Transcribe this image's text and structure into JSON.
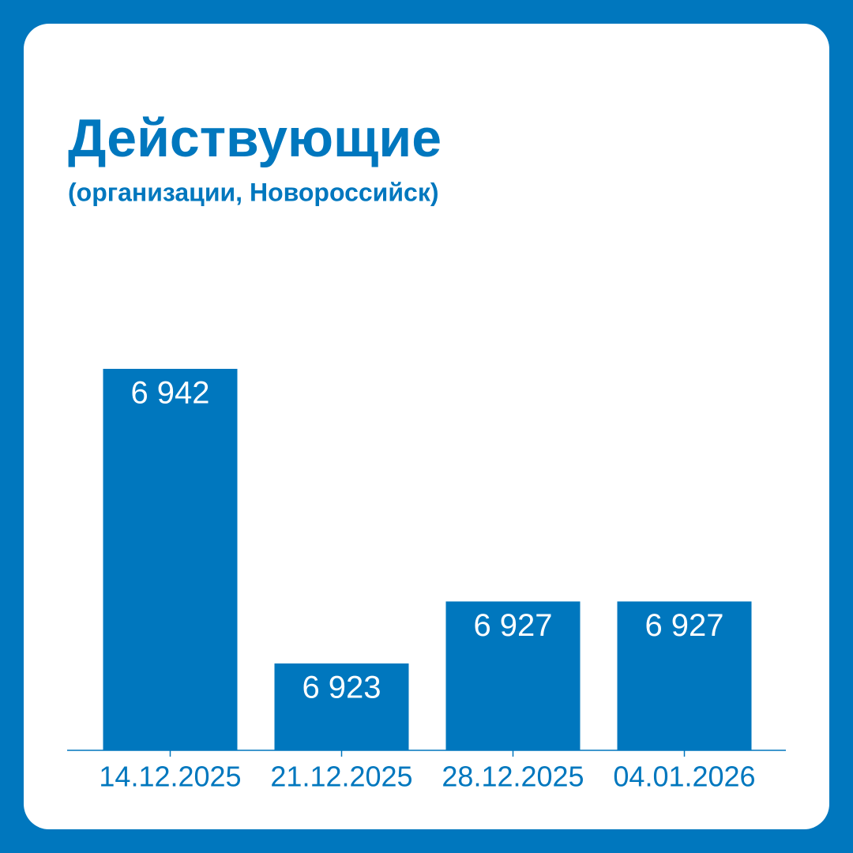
{
  "chart_data": {
    "type": "bar",
    "title": "Действующие",
    "subtitle": "(организации, Новороссийск)",
    "categories": [
      "14.12.2025",
      "21.12.2025",
      "28.12.2025",
      "04.01.2026"
    ],
    "values": [
      6942,
      6923,
      6927,
      6927
    ],
    "value_labels": [
      "6 942",
      "6 923",
      "6 927",
      "6 927"
    ],
    "color": "#0077be",
    "ylim": [
      6917.4,
      6942
    ]
  }
}
